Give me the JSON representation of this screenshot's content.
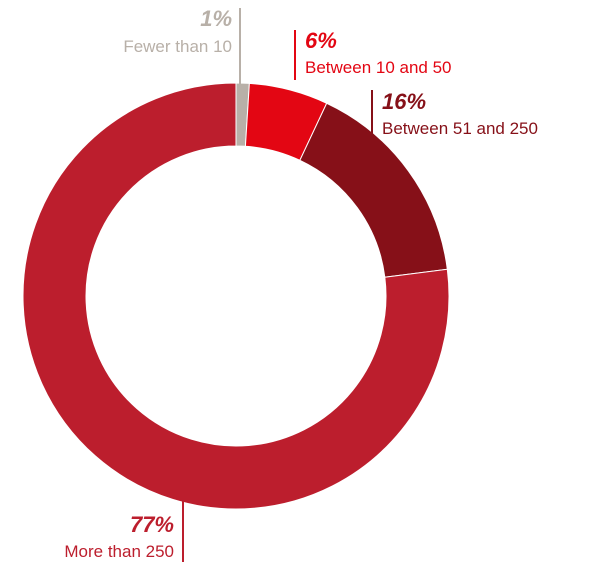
{
  "chart_data": {
    "type": "pie",
    "donut": true,
    "title": "",
    "legend": "none",
    "slices": [
      {
        "label": "Fewer than 10",
        "value": 1,
        "display": "1%",
        "color": "#b8b0a8"
      },
      {
        "label": "Between 10 and 50",
        "value": 6,
        "display": "6%",
        "color": "#e30613"
      },
      {
        "label": "Between 51 and 250",
        "value": 16,
        "display": "16%",
        "color": "#861018"
      },
      {
        "label": "More than 250",
        "value": 77,
        "display": "77%",
        "color": "#bc1e2d"
      }
    ]
  }
}
